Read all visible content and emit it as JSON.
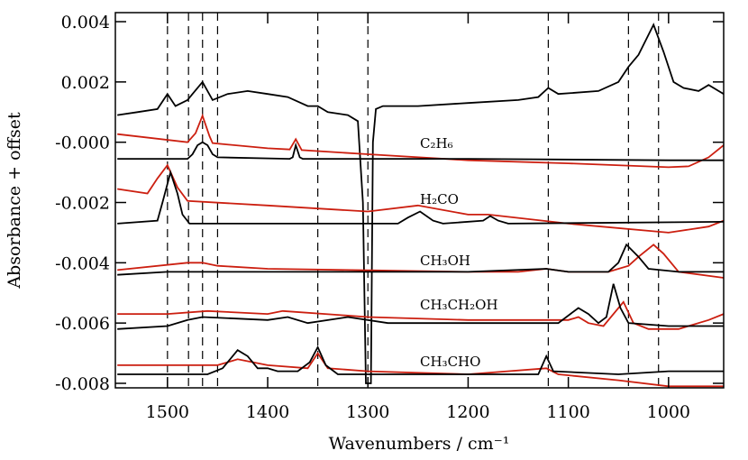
{
  "chart_data": {
    "type": "line",
    "xlabel": "Wavenumbers / cm⁻¹",
    "ylabel": "Absorbance + offset",
    "xlim": [
      1552,
      945
    ],
    "ylim": [
      -0.00815,
      0.0043
    ],
    "xticks": [
      1500,
      1400,
      1300,
      1200,
      1100,
      1000
    ],
    "yticks": [
      0.004,
      0.002,
      {
        "value": 0,
        "label": "-0.000"
      },
      -0.002,
      -0.004,
      -0.006,
      -0.008
    ],
    "vlines": [
      1500,
      1479,
      1465,
      1450,
      1350,
      1300,
      1120,
      1040,
      1010
    ],
    "labels": [
      "C₂H₆",
      "H₂CO",
      "CH₃OH",
      "CH₃CH₂OH",
      "CH₃CHO"
    ],
    "series": [
      {
        "color": "#000000",
        "x": [
          1550,
          1530,
          1510,
          1500,
          1492,
          1480,
          1475,
          1465,
          1455,
          1440,
          1420,
          1400,
          1380,
          1360,
          1350,
          1340,
          1320,
          1310,
          1305,
          1302,
          1297,
          1295,
          1292,
          1285,
          1250,
          1200,
          1150,
          1130,
          1120,
          1110,
          1070,
          1050,
          1040,
          1030,
          1015,
          1005,
          995,
          985,
          970,
          960,
          950,
          945
        ],
        "values": [
          0.0009,
          0.001,
          0.0011,
          0.0016,
          0.0012,
          0.0014,
          0.0016,
          0.002,
          0.0014,
          0.0016,
          0.0017,
          0.0016,
          0.0015,
          0.0012,
          0.0012,
          0.001,
          0.0009,
          0.0007,
          -0.002,
          -0.008,
          -0.008,
          0.0,
          0.0011,
          0.0012,
          0.0012,
          0.0013,
          0.0014,
          0.0015,
          0.0018,
          0.0016,
          0.0017,
          0.002,
          0.0025,
          0.0029,
          0.0039,
          0.003,
          0.002,
          0.0018,
          0.0017,
          0.0019,
          0.0017,
          0.0016
        ]
      },
      {
        "color": "#cc1f10",
        "x": [
          1550,
          1480,
          1472,
          1465,
          1458,
          1455,
          1400,
          1378,
          1372,
          1366,
          1300,
          1200,
          1100,
          1000,
          980,
          960,
          945
        ],
        "values": [
          0.00027,
          0.0,
          0.0003,
          0.00088,
          0.0002,
          -3e-05,
          -0.0002,
          -0.00024,
          0.0001,
          -0.00026,
          -0.0004,
          -0.0006,
          -0.0007,
          -0.00083,
          -0.0008,
          -0.0005,
          -0.0001
        ]
      },
      {
        "color": "#000000",
        "x": [
          1550,
          1480,
          1475,
          1470,
          1465,
          1460,
          1455,
          1450,
          1378,
          1375,
          1372,
          1368,
          1365,
          1200,
          1000,
          945
        ],
        "values": [
          -0.00055,
          -0.00055,
          -0.0004,
          -0.0001,
          0.0,
          -0.0001,
          -0.0004,
          -0.0005,
          -0.00055,
          -0.0005,
          -0.0001,
          -0.0005,
          -0.00055,
          -0.00055,
          -0.0006,
          -0.0006
        ]
      },
      {
        "color": "#cc1f10",
        "x": [
          1550,
          1520,
          1510,
          1500,
          1490,
          1480,
          1400,
          1300,
          1250,
          1200,
          1180,
          1100,
          1000,
          960,
          945
        ],
        "values": [
          -0.00155,
          -0.0017,
          -0.0012,
          -0.00076,
          -0.0015,
          -0.00195,
          -0.0021,
          -0.0023,
          -0.0021,
          -0.0024,
          -0.0024,
          -0.0027,
          -0.003,
          -0.0028,
          -0.0026
        ]
      },
      {
        "color": "#000000",
        "x": [
          1550,
          1510,
          1505,
          1497,
          1490,
          1485,
          1478,
          1270,
          1260,
          1248,
          1235,
          1225,
          1185,
          1178,
          1170,
          1160,
          945
        ],
        "values": [
          -0.0027,
          -0.0026,
          -0.002,
          -0.001,
          -0.0017,
          -0.0024,
          -0.0027,
          -0.0027,
          -0.0025,
          -0.0023,
          -0.0026,
          -0.0027,
          -0.0026,
          -0.00245,
          -0.0026,
          -0.0027,
          -0.00264
        ]
      },
      {
        "color": "#cc1f10",
        "x": [
          1550,
          1480,
          1465,
          1450,
          1400,
          1300,
          1200,
          1150,
          1122,
          1100,
          1060,
          1040,
          1030,
          1015,
          1005,
          990,
          945
        ],
        "values": [
          -0.00424,
          -0.004,
          -0.004,
          -0.0041,
          -0.0042,
          -0.00425,
          -0.0043,
          -0.0043,
          -0.0042,
          -0.0043,
          -0.0043,
          -0.0041,
          -0.0038,
          -0.0034,
          -0.0037,
          -0.0043,
          -0.0045
        ]
      },
      {
        "color": "#000000",
        "x": [
          1550,
          1500,
          1400,
          1300,
          1200,
          1122,
          1100,
          1060,
          1050,
          1042,
          1030,
          1020,
          990,
          945
        ],
        "values": [
          -0.0044,
          -0.0043,
          -0.0043,
          -0.0043,
          -0.0043,
          -0.0042,
          -0.0043,
          -0.0043,
          -0.004,
          -0.0034,
          -0.0038,
          -0.0042,
          -0.0043,
          -0.0043
        ]
      },
      {
        "color": "#cc1f10",
        "x": [
          1550,
          1500,
          1460,
          1400,
          1385,
          1300,
          1200,
          1120,
          1100,
          1090,
          1080,
          1065,
          1045,
          1035,
          1020,
          990,
          960,
          945
        ],
        "values": [
          -0.0057,
          -0.0057,
          -0.0056,
          -0.0057,
          -0.0056,
          -0.0058,
          -0.0059,
          -0.0059,
          -0.0059,
          -0.0058,
          -0.006,
          -0.0061,
          -0.0053,
          -0.006,
          -0.0062,
          -0.0062,
          -0.0059,
          -0.0057
        ]
      },
      {
        "color": "#000000",
        "x": [
          1550,
          1500,
          1480,
          1465,
          1400,
          1380,
          1360,
          1320,
          1280,
          1200,
          1110,
          1098,
          1090,
          1080,
          1070,
          1062,
          1055,
          1048,
          1040,
          1000,
          945
        ],
        "values": [
          -0.0062,
          -0.0061,
          -0.0059,
          -0.0058,
          -0.0059,
          -0.0058,
          -0.006,
          -0.0058,
          -0.006,
          -0.006,
          -0.006,
          -0.0057,
          -0.0055,
          -0.0057,
          -0.006,
          -0.0058,
          -0.0047,
          -0.0055,
          -0.006,
          -0.0061,
          -0.0061
        ]
      },
      {
        "color": "#cc1f10",
        "x": [
          1550,
          1500,
          1450,
          1440,
          1430,
          1400,
          1360,
          1350,
          1340,
          1300,
          1200,
          1122,
          1110,
          1050,
          1000,
          945
        ],
        "values": [
          -0.0074,
          -0.0074,
          -0.0074,
          -0.0073,
          -0.0072,
          -0.0074,
          -0.0075,
          -0.007,
          -0.0075,
          -0.0076,
          -0.0077,
          -0.0075,
          -0.0077,
          -0.0079,
          -0.0081,
          -0.0081
        ]
      },
      {
        "color": "#000000",
        "x": [
          1550,
          1460,
          1445,
          1430,
          1420,
          1410,
          1400,
          1390,
          1370,
          1358,
          1350,
          1342,
          1330,
          1200,
          1130,
          1122,
          1115,
          1050,
          1000,
          945
        ],
        "values": [
          -0.0077,
          -0.0077,
          -0.0075,
          -0.0069,
          -0.0071,
          -0.0075,
          -0.0075,
          -0.0076,
          -0.0076,
          -0.0073,
          -0.0068,
          -0.0074,
          -0.0077,
          -0.0077,
          -0.0077,
          -0.0071,
          -0.0076,
          -0.0077,
          -0.0076,
          -0.0076
        ]
      }
    ]
  }
}
